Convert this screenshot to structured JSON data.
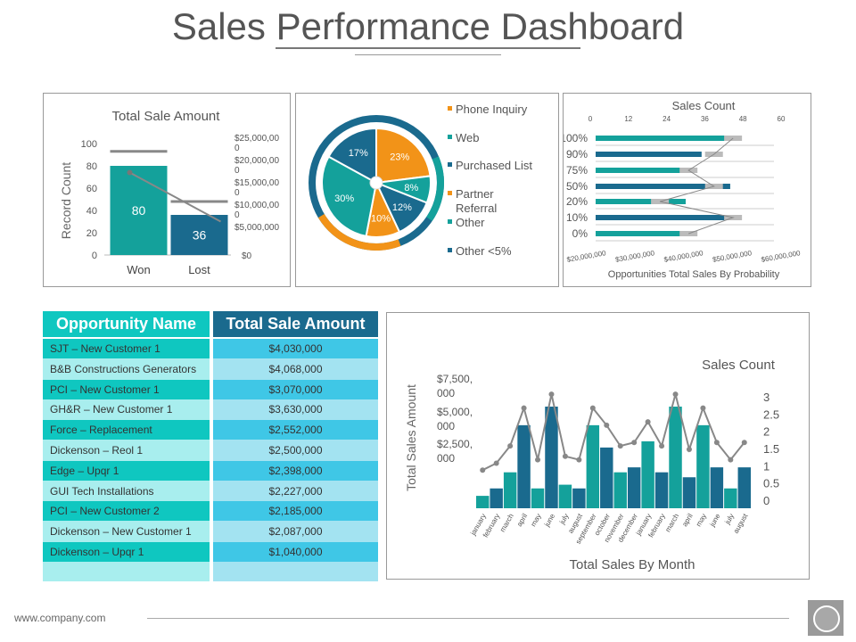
{
  "title": "Sales Performance Dashboard",
  "footer": {
    "url": "www.company.com"
  },
  "colors": {
    "teal": "#14a19b",
    "navy": "#1a6a8e",
    "orange": "#f29318",
    "gray": "#7f7f7f",
    "cyan": "#0fc7c0",
    "light_cyan": "#a8eeee"
  },
  "table": {
    "headers": [
      "Opportunity Name",
      "Total Sale Amount"
    ],
    "rows": [
      {
        "name": "SJT – New Customer 1",
        "amount": "$4,030,000"
      },
      {
        "name": "B&B Constructions Generators",
        "amount": "$4,068,000"
      },
      {
        "name": "PCI – New Customer 1",
        "amount": "$3,070,000"
      },
      {
        "name": "GH&R – New Customer 1",
        "amount": "$3,630,000"
      },
      {
        "name": "Force – Replacement",
        "amount": "$2,552,000"
      },
      {
        "name": "Dickenson – Reol 1",
        "amount": "$2,500,000"
      },
      {
        "name": "Edge – Upqr 1",
        "amount": "$2,398,000"
      },
      {
        "name": "GUI Tech Installations",
        "amount": "$2,227,000"
      },
      {
        "name": "PCI – New Customer 2",
        "amount": "$2,185,000"
      },
      {
        "name": "Dickenson – New Customer 1",
        "amount": "$2,087,000"
      },
      {
        "name": "Dickenson – Upqr 1",
        "amount": "$1,040,000"
      }
    ]
  },
  "chart_data": [
    {
      "type": "bar",
      "title": "Total Sale Amount",
      "ylabel": "Record Count",
      "categories": [
        "Won",
        "Lost"
      ],
      "values": [
        80,
        36
      ],
      "data_labels": [
        "80",
        "36"
      ],
      "ylim": [
        0,
        100
      ],
      "yticks": [
        "100",
        "80",
        "60",
        "40",
        "20",
        "0"
      ],
      "secondary_axis": {
        "ticks": [
          "$25,000,000",
          "$20,000,000",
          "$15,000,000",
          "$10,000,000",
          "$5,000,000",
          "$0"
        ],
        "ylim": [
          0,
          25000000
        ]
      },
      "overlay_line_values": [
        18500000,
        7500000
      ],
      "target_values": [
        93,
        48
      ]
    },
    {
      "type": "pie",
      "slices": [
        {
          "label": "Phone Inquiry",
          "value": 23,
          "text": "23%",
          "color": "#f29318"
        },
        {
          "label": "Web",
          "value": 8,
          "text": "8%",
          "color": "#14a19b"
        },
        {
          "label": "Purchased List",
          "value": 12,
          "text": "12%",
          "color": "#1a6a8e"
        },
        {
          "label": "Partner Referral",
          "value": 10,
          "text": "10%",
          "color": "#f29318"
        },
        {
          "label": "Other",
          "value": 30,
          "text": "30%",
          "color": "#14a19b"
        },
        {
          "label": "Other <5%",
          "value": 17,
          "text": "17%",
          "color": "#1a6a8e"
        }
      ],
      "legend": [
        "Phone Inquiry",
        "Web",
        "Purchased List",
        "Partner Referral",
        "Other",
        "Other <5%"
      ]
    },
    {
      "type": "bar",
      "orientation": "horizontal",
      "title": "Sales Count",
      "xlabel": "Opportunities Total Sales By Probability",
      "categories": [
        "100%",
        "90%",
        "75%",
        "50%",
        "20%",
        "10%",
        "0%"
      ],
      "series": [
        {
          "values": [
            43,
            35,
            33,
            44,
            30,
            43,
            33
          ]
        },
        {
          "values": [
            32,
            26,
            18,
            26,
            9,
            32,
            18
          ]
        }
      ],
      "top_axis_ticks": [
        "0",
        "12",
        "24",
        "36",
        "48",
        "60"
      ],
      "top_axis_range": [
        0,
        60
      ],
      "bottom_axis_ticks": [
        "$20,000,000",
        "$30,000,000",
        "$40,000,000",
        "$50,000,000",
        "$60,000,000"
      ],
      "bottom_axis_range": [
        20000000,
        60000000
      ]
    },
    {
      "type": "bar",
      "title": "Sales Count",
      "xlabel": "Total Sales By Month",
      "ylabel": "Total Sales Amount",
      "categories": [
        "january",
        "february",
        "march",
        "april",
        "may",
        "june",
        "july",
        "august",
        "september",
        "october",
        "november",
        "december",
        "january",
        "february",
        "march",
        "april",
        "may",
        "june",
        "july",
        "august"
      ],
      "bar_values": [
        1.0,
        1.6,
        2.9,
        6.7,
        1.6,
        8.2,
        1.9,
        1.6,
        6.7,
        4.9,
        2.9,
        3.3,
        5.4,
        2.9,
        8.2,
        2.5,
        6.7,
        3.3,
        1.6,
        3.3
      ],
      "line_values": [
        0.9,
        1.1,
        1.6,
        2.7,
        1.2,
        3.1,
        1.3,
        1.2,
        2.7,
        2.2,
        1.6,
        1.7,
        2.3,
        1.6,
        3.1,
        1.5,
        2.7,
        1.7,
        1.2,
        1.7
      ],
      "left_axis": {
        "ticks": [
          "$7,500,000",
          "$5,000,000",
          "$2,500,000"
        ],
        "range": [
          0,
          10
        ]
      },
      "right_axis": {
        "ticks": [
          "3",
          "2.5",
          "2",
          "1.5",
          "1",
          "0.5",
          "0"
        ],
        "range": [
          0,
          3
        ]
      }
    }
  ]
}
